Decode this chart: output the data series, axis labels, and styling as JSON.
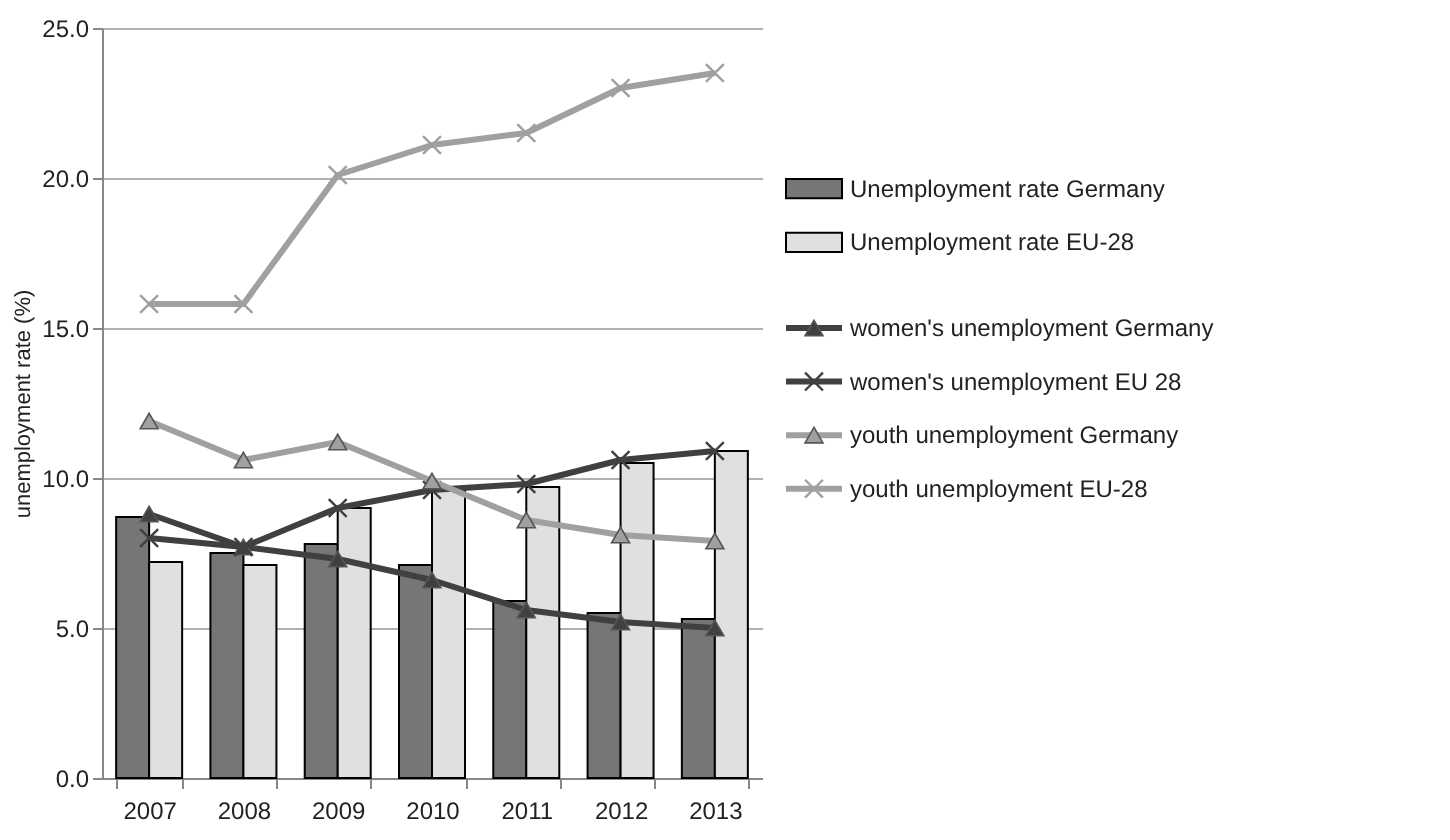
{
  "chart_data": {
    "type": "bar",
    "ylabel": "unemployment rate (%)",
    "categories": [
      "2007",
      "2008",
      "2009",
      "2010",
      "2011",
      "2012",
      "2013"
    ],
    "series": [
      {
        "name": "Unemployment rate Germany",
        "color": "#767676",
        "values": [
          8.7,
          7.5,
          7.8,
          7.1,
          5.9,
          5.5,
          5.3
        ]
      },
      {
        "name": "Unemployment rate EU-28",
        "color": "#e0e0e0",
        "values": [
          7.2,
          7.1,
          9.0,
          9.7,
          9.7,
          10.5,
          10.9
        ]
      },
      {
        "name": "women's unemployment Germany",
        "type": "line",
        "marker": "triangle",
        "color": "#404040",
        "values": [
          8.8,
          7.7,
          7.3,
          6.6,
          5.6,
          5.2,
          5.0
        ]
      },
      {
        "name": "women's unemployment EU 28",
        "type": "line",
        "marker": "cross",
        "color": "#404040",
        "values": [
          8.0,
          7.7,
          9.0,
          9.6,
          9.8,
          10.6,
          10.9
        ]
      },
      {
        "name": "youth unemployment Germany",
        "type": "line",
        "marker": "triangle",
        "color": "#a0a0a0",
        "values": [
          11.9,
          10.6,
          11.2,
          9.9,
          8.6,
          8.1,
          7.9
        ]
      },
      {
        "name": "youth unemployment EU-28",
        "type": "line",
        "marker": "cross",
        "color": "#a0a0a0",
        "values": [
          15.8,
          15.8,
          20.1,
          21.1,
          21.5,
          23.0,
          23.5
        ]
      }
    ],
    "ylim": [
      0,
      25
    ],
    "yticks": [
      {
        "value": 0,
        "label": "0.0"
      },
      {
        "value": 5,
        "label": "5.0"
      },
      {
        "value": 10,
        "label": "10.0"
      },
      {
        "value": 15,
        "label": "15.0"
      },
      {
        "value": 20,
        "label": "20.0"
      },
      {
        "value": 25,
        "label": "25.0"
      }
    ],
    "grid": "y",
    "legend": "right"
  }
}
